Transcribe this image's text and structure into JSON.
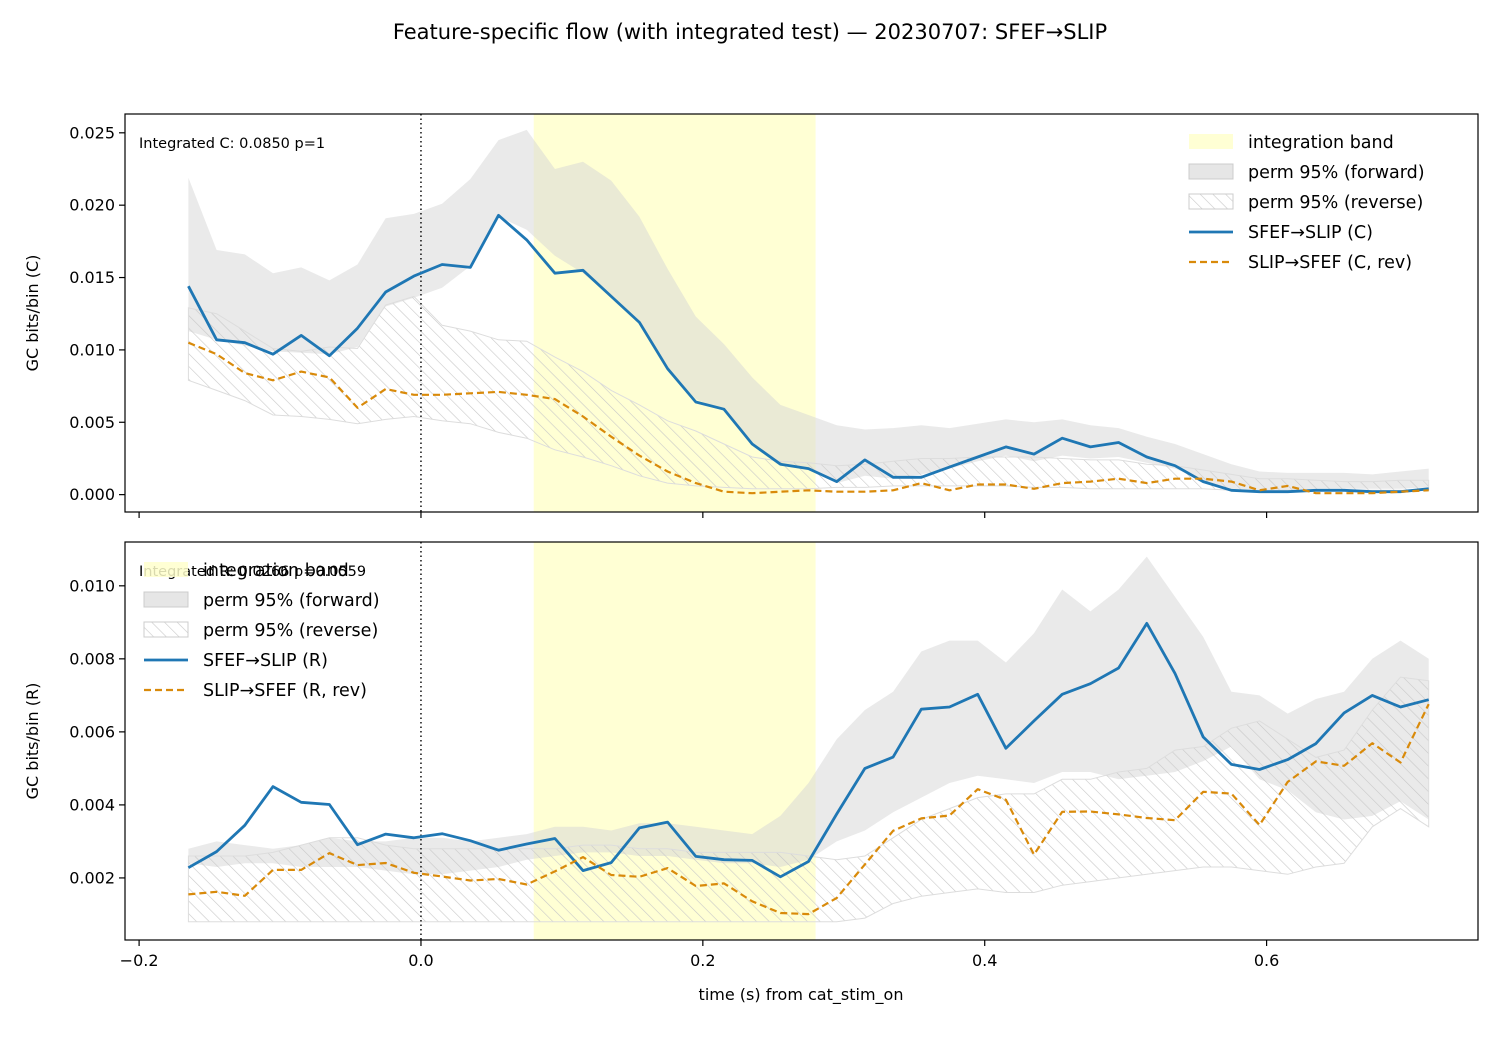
{
  "figure": {
    "title": "Feature-specific flow (with integrated test) — 20230707: SFEF→SLIP",
    "xlabel": "time (s) from cat_stim_on"
  },
  "colors": {
    "forward": "#1f77b4",
    "reverse": "#d98a0a",
    "perm_forward": "#d6d6d6",
    "perm_reverse_hatch": "#bbbbbb",
    "integration_band": "#ffffcc"
  },
  "chart_data": [
    {
      "type": "line",
      "ylabel": "GC bits/bin (C)",
      "xlim": [
        -0.21,
        0.75
      ],
      "ylim": [
        -0.0012,
        0.0263
      ],
      "xticks": [
        -0.2,
        0.0,
        0.2,
        0.4,
        0.6
      ],
      "yticks": [
        0.0,
        0.005,
        0.01,
        0.015,
        0.02,
        0.025
      ],
      "ytick_labels": [
        "0.000",
        "0.005",
        "0.010",
        "0.015",
        "0.020",
        "0.025"
      ],
      "vline_x": 0.0,
      "integration_band": [
        0.08,
        0.28
      ],
      "annotation": "Integrated C: 0.0850  p=1",
      "legend_position": "upper-right",
      "legend": [
        "integration band",
        "perm 95% (forward)",
        "perm 95% (reverse)",
        "SFEF→SLIP (C)",
        "SLIP→SFEF (C, rev)"
      ],
      "x": [
        -0.165,
        -0.145,
        -0.125,
        -0.105,
        -0.085,
        -0.065,
        -0.045,
        -0.025,
        -0.005,
        0.015,
        0.035,
        0.055,
        0.075,
        0.095,
        0.115,
        0.135,
        0.155,
        0.175,
        0.195,
        0.215,
        0.235,
        0.255,
        0.275,
        0.295,
        0.315,
        0.335,
        0.355,
        0.375,
        0.395,
        0.415,
        0.435,
        0.455,
        0.475,
        0.495,
        0.515,
        0.535,
        0.555,
        0.575,
        0.595,
        0.615,
        0.635,
        0.655,
        0.675,
        0.695,
        0.715
      ],
      "series": [
        {
          "name": "SFEF→SLIP (C)",
          "kind": "forward",
          "values": [
            0.0144,
            0.0107,
            0.0105,
            0.0097,
            0.011,
            0.0096,
            0.0115,
            0.014,
            0.0151,
            0.0159,
            0.0157,
            0.0193,
            0.0176,
            0.0153,
            0.0155,
            0.0137,
            0.0119,
            0.0087,
            0.0064,
            0.0059,
            0.0035,
            0.0021,
            0.0018,
            0.0009,
            0.0024,
            0.0012,
            0.0012,
            0.0019,
            0.0026,
            0.0033,
            0.0028,
            0.0039,
            0.0033,
            0.0036,
            0.0026,
            0.002,
            0.0009,
            0.0003,
            0.0002,
            0.0002,
            0.0003,
            0.0003,
            0.0002,
            0.0002,
            0.0004
          ]
        },
        {
          "name": "SLIP→SFEF (C, rev)",
          "kind": "reverse",
          "values": [
            0.0105,
            0.0097,
            0.0084,
            0.0079,
            0.0085,
            0.0081,
            0.006,
            0.0073,
            0.0069,
            0.0069,
            0.007,
            0.0071,
            0.0069,
            0.0066,
            0.0054,
            0.004,
            0.0027,
            0.0016,
            0.0008,
            0.0002,
            0.0001,
            0.0002,
            0.0003,
            0.0002,
            0.0002,
            0.0003,
            0.0008,
            0.0003,
            0.0007,
            0.0007,
            0.0004,
            0.0008,
            0.0009,
            0.0011,
            0.0008,
            0.0011,
            0.0011,
            0.0009,
            0.0003,
            0.0006,
            0.0001,
            0.0001,
            0.0001,
            0.0002,
            0.0003
          ]
        }
      ],
      "perm_forward": {
        "lower": [
          0.0113,
          0.0107,
          0.0103,
          0.0099,
          0.0098,
          0.0097,
          0.0102,
          0.013,
          0.0136,
          0.0143,
          0.0158,
          0.0192,
          0.0183,
          0.0165,
          0.0153,
          0.0137,
          0.0118,
          0.0087,
          0.0066,
          0.0058,
          0.0036,
          0.0022,
          0.0018,
          0.0008,
          0.0013,
          0.0011,
          0.0014,
          0.0018,
          0.0023,
          0.0027,
          0.0023,
          0.0027,
          0.0025,
          0.0026,
          0.0022,
          0.0018,
          0.001,
          0.0004,
          0.0003,
          0.0003,
          0.0004,
          0.0004,
          0.0004,
          0.0004,
          0.0005
        ],
        "upper": [
          0.0219,
          0.0169,
          0.0166,
          0.0153,
          0.0157,
          0.0148,
          0.0159,
          0.0191,
          0.0194,
          0.0201,
          0.0218,
          0.0245,
          0.0252,
          0.0225,
          0.023,
          0.0217,
          0.0192,
          0.0156,
          0.0123,
          0.0104,
          0.0081,
          0.0062,
          0.0055,
          0.0048,
          0.0045,
          0.0046,
          0.0048,
          0.0046,
          0.0049,
          0.0052,
          0.005,
          0.0052,
          0.0048,
          0.0046,
          0.004,
          0.0035,
          0.0028,
          0.0021,
          0.0016,
          0.0015,
          0.0015,
          0.0015,
          0.0014,
          0.0016,
          0.0018
        ]
      },
      "perm_reverse": {
        "lower": [
          0.0079,
          0.0072,
          0.0065,
          0.0055,
          0.0054,
          0.0052,
          0.0049,
          0.0052,
          0.0054,
          0.0051,
          0.0049,
          0.0043,
          0.0039,
          0.0031,
          0.0026,
          0.002,
          0.0013,
          0.0008,
          0.0006,
          0.0005,
          0.0004,
          0.0004,
          0.0004,
          0.0005,
          0.0005,
          0.0006,
          0.0006,
          0.0006,
          0.0006,
          0.0006,
          0.0005,
          0.0005,
          0.0004,
          0.0004,
          0.0004,
          0.0004,
          0.0004,
          0.0003,
          0.0003,
          0.0003,
          0.0003,
          0.0003,
          0.0003,
          0.0003,
          0.0003
        ],
        "upper": [
          0.0129,
          0.0125,
          0.0113,
          0.0101,
          0.0099,
          0.0102,
          0.0101,
          0.0131,
          0.0137,
          0.0117,
          0.0113,
          0.0107,
          0.0106,
          0.0095,
          0.0085,
          0.0072,
          0.0062,
          0.0051,
          0.0044,
          0.0035,
          0.0026,
          0.0023,
          0.0022,
          0.002,
          0.0021,
          0.0023,
          0.0025,
          0.0025,
          0.0026,
          0.0026,
          0.0026,
          0.0025,
          0.0024,
          0.0024,
          0.0021,
          0.002,
          0.0017,
          0.0014,
          0.0011,
          0.0011,
          0.001,
          0.0009,
          0.0009,
          0.001,
          0.001
        ]
      }
    },
    {
      "type": "line",
      "ylabel": "GC bits/bin (R)",
      "xlim": [
        -0.21,
        0.75
      ],
      "ylim": [
        0.0003,
        0.0112
      ],
      "xticks": [
        -0.2,
        0.0,
        0.2,
        0.4,
        0.6
      ],
      "xtick_labels": [
        "−0.2",
        "0.0",
        "0.2",
        "0.4",
        "0.6"
      ],
      "yticks": [
        0.002,
        0.004,
        0.006,
        0.008,
        0.01
      ],
      "ytick_labels": [
        "0.002",
        "0.004",
        "0.006",
        "0.008",
        "0.010"
      ],
      "vline_x": 0.0,
      "integration_band": [
        0.08,
        0.28
      ],
      "annotation": "Integrated R: 0.0266  p=0.0559",
      "legend_position": "upper-left",
      "legend": [
        "integration band",
        "perm 95% (forward)",
        "perm 95% (reverse)",
        "SFEF→SLIP (R)",
        "SLIP→SFEF (R, rev)"
      ],
      "x": [
        -0.165,
        -0.145,
        -0.125,
        -0.105,
        -0.085,
        -0.065,
        -0.045,
        -0.025,
        -0.005,
        0.015,
        0.035,
        0.055,
        0.075,
        0.095,
        0.115,
        0.135,
        0.155,
        0.175,
        0.195,
        0.215,
        0.235,
        0.255,
        0.275,
        0.295,
        0.315,
        0.335,
        0.355,
        0.375,
        0.395,
        0.415,
        0.435,
        0.455,
        0.475,
        0.495,
        0.515,
        0.535,
        0.555,
        0.575,
        0.595,
        0.615,
        0.635,
        0.655,
        0.675,
        0.695,
        0.715
      ],
      "series": [
        {
          "name": "SFEF→SLIP (R)",
          "kind": "forward",
          "values": [
            0.00228,
            0.00272,
            0.00344,
            0.0045,
            0.00407,
            0.00401,
            0.00291,
            0.0032,
            0.0031,
            0.00321,
            0.00302,
            0.00276,
            0.00293,
            0.00308,
            0.0022,
            0.00242,
            0.00337,
            0.00353,
            0.00259,
            0.0025,
            0.00248,
            0.00203,
            0.00245,
            0.00375,
            0.005,
            0.00531,
            0.00662,
            0.00668,
            0.00703,
            0.00555,
            0.0063,
            0.00703,
            0.00732,
            0.00775,
            0.00897,
            0.0076,
            0.00586,
            0.00511,
            0.00497,
            0.00524,
            0.00568,
            0.00652,
            0.007,
            0.00668,
            0.00688
          ]
        },
        {
          "name": "SLIP→SFEF (R, rev)",
          "kind": "reverse",
          "values": [
            0.00155,
            0.00162,
            0.00151,
            0.00222,
            0.00222,
            0.00268,
            0.00235,
            0.00241,
            0.00214,
            0.00204,
            0.00193,
            0.00197,
            0.00182,
            0.00218,
            0.00257,
            0.00208,
            0.00203,
            0.00227,
            0.00178,
            0.00185,
            0.00136,
            0.00104,
            0.00101,
            0.00145,
            0.00237,
            0.00329,
            0.00363,
            0.00371,
            0.00443,
            0.00414,
            0.00264,
            0.00381,
            0.00382,
            0.00374,
            0.00364,
            0.00358,
            0.00436,
            0.00431,
            0.00345,
            0.00463,
            0.00519,
            0.00507,
            0.00569,
            0.00516,
            0.00676
          ]
        }
      ],
      "perm_forward": {
        "lower": [
          0.0024,
          0.0023,
          0.0024,
          0.0024,
          0.0023,
          0.0023,
          0.0023,
          0.0022,
          0.0021,
          0.0021,
          0.0022,
          0.0023,
          0.0025,
          0.0026,
          0.0027,
          0.0027,
          0.0026,
          0.0026,
          0.0025,
          0.0024,
          0.0024,
          0.0023,
          0.0025,
          0.003,
          0.0033,
          0.0038,
          0.0042,
          0.0046,
          0.0048,
          0.0047,
          0.0046,
          0.0049,
          0.0049,
          0.0047,
          0.0048,
          0.0049,
          0.0052,
          0.0056,
          0.0047,
          0.0044,
          0.0038,
          0.0036,
          0.0037,
          0.0041,
          0.0036
        ],
        "upper": [
          0.0028,
          0.003,
          0.0029,
          0.0028,
          0.0029,
          0.0031,
          0.003,
          0.003,
          0.0031,
          0.0031,
          0.003,
          0.0031,
          0.0032,
          0.0034,
          0.0034,
          0.0033,
          0.0035,
          0.0035,
          0.0034,
          0.0033,
          0.0032,
          0.0037,
          0.0046,
          0.0058,
          0.0066,
          0.0071,
          0.0082,
          0.0085,
          0.0085,
          0.0079,
          0.0087,
          0.0099,
          0.0093,
          0.0099,
          0.0108,
          0.0097,
          0.0086,
          0.0071,
          0.007,
          0.0065,
          0.0069,
          0.0071,
          0.008,
          0.0085,
          0.008
        ]
      },
      "perm_reverse": {
        "lower": [
          0.0008,
          0.0008,
          0.0008,
          0.0008,
          0.0008,
          0.0008,
          0.0008,
          0.0008,
          0.0008,
          0.0008,
          0.0008,
          0.0008,
          0.0008,
          0.0008,
          0.0008,
          0.0008,
          0.0008,
          0.0008,
          0.0008,
          0.0008,
          0.0008,
          0.0008,
          0.0008,
          0.0008,
          0.0009,
          0.0013,
          0.0015,
          0.0016,
          0.0017,
          0.0016,
          0.0016,
          0.0018,
          0.0019,
          0.002,
          0.0021,
          0.0022,
          0.0023,
          0.0023,
          0.0022,
          0.0021,
          0.0023,
          0.0024,
          0.0034,
          0.0039,
          0.0034
        ],
        "upper": [
          0.0026,
          0.0026,
          0.0026,
          0.0027,
          0.0029,
          0.0031,
          0.0031,
          0.0029,
          0.0028,
          0.0028,
          0.0028,
          0.0028,
          0.0028,
          0.0028,
          0.0029,
          0.0029,
          0.0028,
          0.0028,
          0.0027,
          0.0027,
          0.0027,
          0.0027,
          0.0026,
          0.0025,
          0.0026,
          0.0031,
          0.0036,
          0.0039,
          0.0042,
          0.0043,
          0.0043,
          0.0047,
          0.0047,
          0.0049,
          0.005,
          0.0055,
          0.0056,
          0.0061,
          0.0063,
          0.0058,
          0.0053,
          0.0055,
          0.0066,
          0.0075,
          0.0074
        ]
      }
    }
  ]
}
